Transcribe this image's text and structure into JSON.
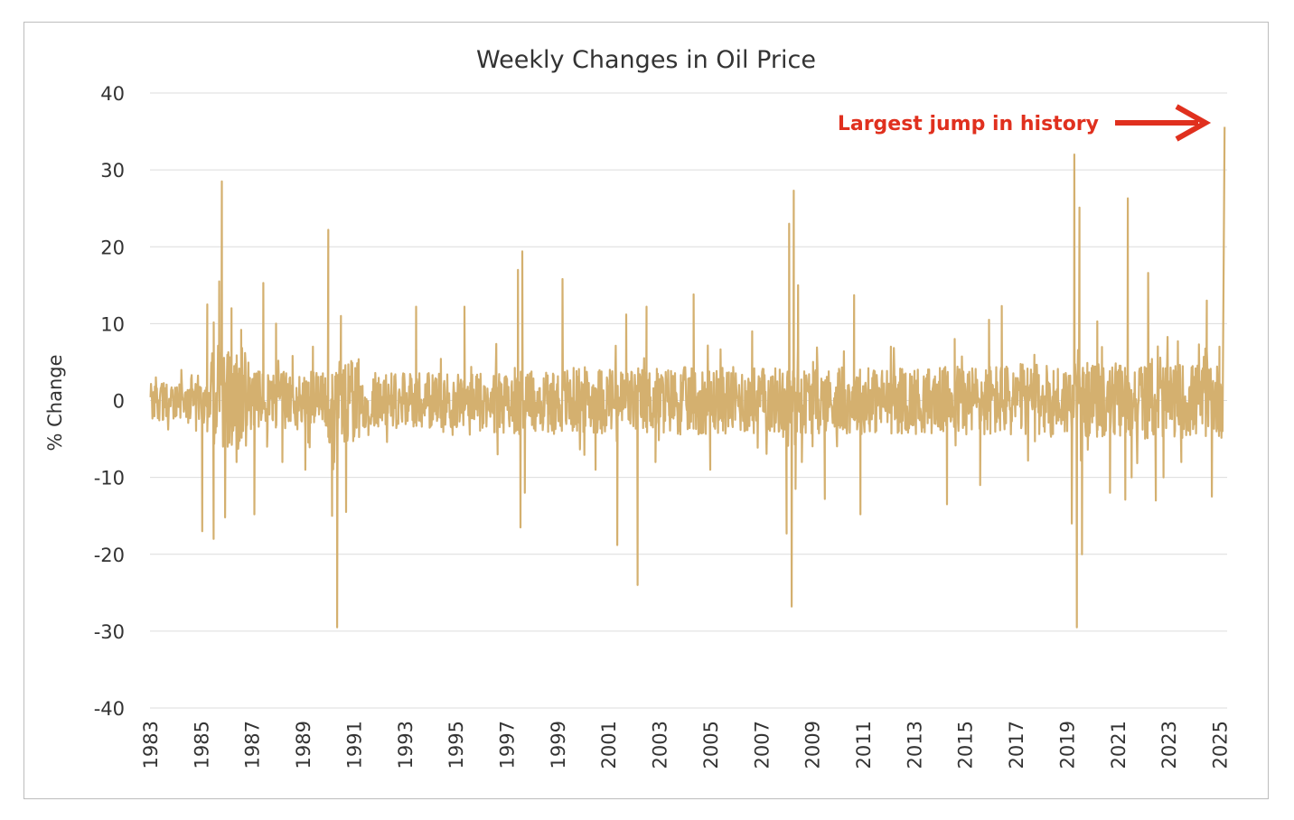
{
  "chart_data": {
    "type": "line",
    "title": "Weekly Changes in Oil Price",
    "xlabel": "",
    "ylabel": "% Change",
    "xlim": [
      1983,
      2025.3
    ],
    "ylim": [
      -40,
      40
    ],
    "yticks": [
      40,
      30,
      20,
      10,
      0,
      -10,
      -20,
      -30,
      -40
    ],
    "xticks": [
      1983,
      1985,
      1987,
      1989,
      1991,
      1993,
      1995,
      1997,
      1999,
      2001,
      2003,
      2005,
      2007,
      2009,
      2011,
      2013,
      2015,
      2017,
      2019,
      2021,
      2023,
      2025
    ],
    "grid": true,
    "line_color": "#d4b06f",
    "annotation": {
      "text": "Largest jump in history",
      "color": "#e0301e",
      "target_x": 2025.2,
      "target_y": 35.6
    },
    "series": [
      {
        "x": [
          1985.05,
          1985.25,
          1985.5,
          1985.72,
          1985.82,
          1985.95,
          1986.05,
          1986.2,
          1986.4,
          1986.58,
          1987.1,
          1987.45,
          1987.6,
          1987.95,
          1988.2,
          1988.6,
          1989.1,
          1989.4,
          1990.0,
          1990.15,
          1990.35,
          1990.5,
          1990.7,
          1993.45,
          1995.35,
          1996.65,
          1997.45,
          1997.55,
          1997.62,
          1997.72,
          1999.2,
          2000.5,
          2001.35,
          2001.7,
          2002.15,
          2002.5,
          2002.85,
          2004.35,
          2005.0,
          2006.65,
          2008.0,
          2008.1,
          2008.2,
          2008.28,
          2008.35,
          2008.45,
          2008.6,
          2009.5,
          2010.65,
          2010.9,
          2014.3,
          2014.6,
          2015.6,
          2015.95,
          2016.45,
          2019.2,
          2019.3,
          2019.4,
          2019.5,
          2019.6,
          2020.2,
          2020.7,
          2021.3,
          2021.4,
          2021.55,
          2022.2,
          2022.5,
          2022.8,
          2023.5,
          2024.5,
          2024.7,
          2025.0,
          2025.12,
          2025.2
        ],
        "y": [
          -17,
          12.5,
          -18,
          15.5,
          28.5,
          -15.2,
          -6,
          12,
          -8,
          9.2,
          -14.8,
          15.3,
          -6,
          10,
          -8,
          5.8,
          -9,
          7,
          22.2,
          -15,
          -29.5,
          11,
          -14.5,
          12.2,
          12.2,
          -7,
          17,
          -16.5,
          19.4,
          -12,
          15.8,
          -9,
          -18.8,
          11.2,
          -24,
          12.2,
          -8,
          13.8,
          -9,
          9,
          -17.3,
          23,
          -26.8,
          27.3,
          -11.5,
          15,
          -8,
          -12.8,
          13.7,
          -14.8,
          -13.5,
          8,
          -11,
          10.5,
          12.3,
          -16,
          32,
          -29.5,
          25.1,
          -20,
          10.3,
          -12,
          -12.9,
          26.3,
          -10,
          16.6,
          -13,
          -10,
          -8,
          13,
          -12.5,
          7,
          -4,
          35.6
        ]
      }
    ]
  }
}
